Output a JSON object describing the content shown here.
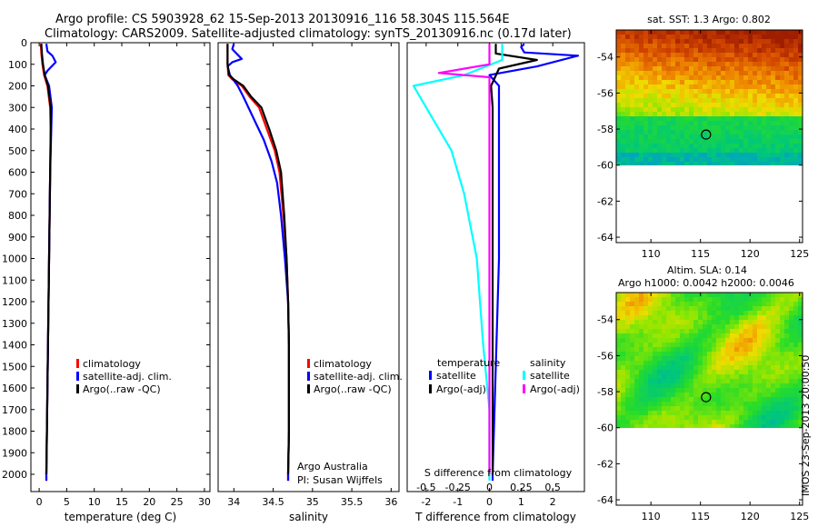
{
  "header": {
    "line1": "Argo profile: CS 5903928_62 15-Sep-2013 20130916_116 58.304S 115.564E",
    "line2": "Climatology: CARS2009. Satellite-adjusted climatology: synTS_20130916.nc (0.17d later)"
  },
  "colors": {
    "climatology": "#ff0000",
    "satellite": "#0000ff",
    "argo": "#000000",
    "sal_satellite": "#00ffff",
    "sal_argo": "#ff00ff"
  },
  "chart_data": [
    {
      "type": "line",
      "name": "temperature-profile",
      "xlabel": "temperature (deg C)",
      "ylabel": "",
      "xlim": [
        -1.5,
        31
      ],
      "ylim": [
        2080,
        0
      ],
      "xticks": [
        0,
        5,
        10,
        15,
        20,
        25,
        30
      ],
      "yticks": [
        0,
        100,
        200,
        300,
        400,
        500,
        600,
        700,
        800,
        900,
        1000,
        1100,
        1200,
        1300,
        1400,
        1500,
        1600,
        1700,
        1800,
        1900,
        2000
      ],
      "legend": [
        "climatology",
        "satellite-adj. clim.",
        "Argo(..raw -QC)"
      ],
      "legend_position": "lower-center",
      "series": [
        {
          "name": "climatology",
          "color": "#ff0000",
          "points": [
            [
              0.3,
              5
            ],
            [
              0.4,
              50
            ],
            [
              0.6,
              100
            ],
            [
              0.9,
              150
            ],
            [
              1.5,
              200
            ],
            [
              2.0,
              300
            ],
            [
              2.1,
              400
            ],
            [
              2.0,
              600
            ],
            [
              1.9,
              800
            ],
            [
              1.8,
              1000
            ],
            [
              1.7,
              1200
            ],
            [
              1.6,
              1400
            ],
            [
              1.5,
              1600
            ],
            [
              1.4,
              1800
            ],
            [
              1.3,
              2000
            ],
            [
              1.3,
              2030
            ]
          ]
        },
        {
          "name": "satellite-adj. clim.",
          "color": "#0000ff",
          "points": [
            [
              1.3,
              5
            ],
            [
              1.5,
              40
            ],
            [
              2.4,
              60
            ],
            [
              3.0,
              90
            ],
            [
              1.5,
              130
            ],
            [
              1.0,
              150
            ],
            [
              1.8,
              200
            ],
            [
              2.3,
              300
            ],
            [
              2.2,
              400
            ],
            [
              2.0,
              600
            ],
            [
              1.9,
              800
            ],
            [
              1.8,
              1000
            ],
            [
              1.7,
              1200
            ],
            [
              1.6,
              1400
            ],
            [
              1.5,
              1600
            ],
            [
              1.4,
              1800
            ],
            [
              1.3,
              2000
            ],
            [
              1.3,
              2030
            ]
          ]
        },
        {
          "name": "Argo(..raw -QC)",
          "color": "#000000",
          "points": [
            [
              0.4,
              5
            ],
            [
              0.5,
              50
            ],
            [
              0.7,
              100
            ],
            [
              1.0,
              150
            ],
            [
              1.6,
              200
            ],
            [
              2.1,
              300
            ],
            [
              2.1,
              400
            ],
            [
              2.0,
              600
            ],
            [
              1.9,
              800
            ],
            [
              1.8,
              1000
            ],
            [
              1.7,
              1200
            ],
            [
              1.6,
              1400
            ],
            [
              1.5,
              1600
            ],
            [
              1.4,
              1800
            ],
            [
              1.3,
              2000
            ]
          ]
        }
      ]
    },
    {
      "type": "line",
      "name": "salinity-profile",
      "xlabel": "salinity",
      "ylabel": "",
      "xlim": [
        33.8,
        36.1
      ],
      "ylim": [
        2080,
        0
      ],
      "xticks": [
        34,
        34.5,
        35,
        35.5,
        36
      ],
      "xticklabels": [
        "34",
        "34.5",
        "35",
        "35.5",
        "36"
      ],
      "legend": [
        "climatology",
        "satellite-adj. clim.",
        "Argo(..raw -QC)"
      ],
      "legend_position": "lower-right",
      "annotation": [
        "Argo Australia",
        "PI: Susan Wijffels"
      ],
      "series": [
        {
          "name": "climatology",
          "color": "#ff0000",
          "points": [
            [
              33.92,
              5
            ],
            [
              33.92,
              100
            ],
            [
              33.93,
              150
            ],
            [
              33.98,
              170
            ],
            [
              34.1,
              200
            ],
            [
              34.2,
              250
            ],
            [
              34.32,
              300
            ],
            [
              34.42,
              400
            ],
            [
              34.52,
              500
            ],
            [
              34.58,
              600
            ],
            [
              34.63,
              800
            ],
            [
              34.67,
              1000
            ],
            [
              34.69,
              1200
            ],
            [
              34.7,
              1400
            ],
            [
              34.7,
              1600
            ],
            [
              34.7,
              1800
            ],
            [
              34.69,
              2000
            ],
            [
              34.69,
              2030
            ]
          ]
        },
        {
          "name": "satellite-adj. clim.",
          "color": "#0000ff",
          "points": [
            [
              34.0,
              5
            ],
            [
              33.98,
              30
            ],
            [
              34.1,
              75
            ],
            [
              33.98,
              90
            ],
            [
              33.92,
              110
            ],
            [
              33.95,
              150
            ],
            [
              34.05,
              200
            ],
            [
              34.12,
              250
            ],
            [
              34.25,
              350
            ],
            [
              34.38,
              450
            ],
            [
              34.48,
              550
            ],
            [
              34.55,
              650
            ],
            [
              34.6,
              800
            ],
            [
              34.65,
              1000
            ],
            [
              34.69,
              1200
            ],
            [
              34.7,
              1400
            ],
            [
              34.7,
              1600
            ],
            [
              34.7,
              1800
            ],
            [
              34.69,
              2000
            ],
            [
              34.69,
              2030
            ]
          ]
        },
        {
          "name": "Argo(..raw -QC)",
          "color": "#000000",
          "points": [
            [
              33.92,
              5
            ],
            [
              33.92,
              100
            ],
            [
              33.94,
              150
            ],
            [
              34.0,
              170
            ],
            [
              34.12,
              200
            ],
            [
              34.22,
              250
            ],
            [
              34.35,
              300
            ],
            [
              34.45,
              400
            ],
            [
              34.54,
              500
            ],
            [
              34.6,
              600
            ],
            [
              34.64,
              800
            ],
            [
              34.67,
              1000
            ],
            [
              34.69,
              1200
            ],
            [
              34.7,
              1400
            ],
            [
              34.7,
              1600
            ],
            [
              34.7,
              1800
            ],
            [
              34.69,
              2000
            ]
          ]
        }
      ]
    },
    {
      "type": "line",
      "name": "difference-profile",
      "xlabel": "T difference from climatology",
      "xlabel_top": "S difference from climatology",
      "ylabel": "",
      "xlim": [
        -2.6,
        3.0
      ],
      "ylim": [
        2080,
        0
      ],
      "xticks": [
        -2,
        -1,
        0,
        1,
        2
      ],
      "xticks_top": [
        -0.5,
        -0.25,
        0,
        0.25,
        0.5
      ],
      "xticklabels_top": [
        "-0.5",
        "-0.25",
        "0",
        "0.25",
        "0.5"
      ],
      "legend_temperature": {
        "heading": "temperature",
        "items": [
          "satellite",
          "Argo(-adj)"
        ]
      },
      "legend_salinity": {
        "heading": "salinity",
        "items": [
          "satellite",
          "Argo(-adj)"
        ]
      },
      "series": [
        {
          "name": "satellite",
          "group": "temperature",
          "color": "#0000ff",
          "points": [
            [
              1.1,
              5
            ],
            [
              1.0,
              20
            ],
            [
              1.1,
              45
            ],
            [
              2.8,
              60
            ],
            [
              1.5,
              110
            ],
            [
              0.0,
              150
            ],
            [
              0.3,
              200
            ],
            [
              0.3,
              300
            ],
            [
              0.3,
              500
            ],
            [
              0.3,
              1000
            ],
            [
              0.2,
              1500
            ],
            [
              0.1,
              2000
            ],
            [
              0.1,
              2030
            ]
          ]
        },
        {
          "name": "Argo(-adj)",
          "group": "temperature",
          "color": "#000000",
          "points": [
            [
              0.2,
              5
            ],
            [
              0.2,
              50
            ],
            [
              1.5,
              80
            ],
            [
              0.3,
              120
            ],
            [
              0.05,
              200
            ],
            [
              0.1,
              300
            ],
            [
              0.1,
              500
            ],
            [
              0.1,
              1000
            ],
            [
              0.1,
              1500
            ],
            [
              0.1,
              2000
            ]
          ]
        },
        {
          "name": "satellite",
          "group": "salinity",
          "color": "#00ffff",
          "points": [
            [
              0.1,
              5
            ],
            [
              0.1,
              80
            ],
            [
              -0.2,
              150
            ],
            [
              -0.6,
              200
            ],
            [
              -0.5,
              300
            ],
            [
              -0.3,
              500
            ],
            [
              -0.2,
              700
            ],
            [
              -0.1,
              1000
            ],
            [
              -0.05,
              1400
            ],
            [
              0.0,
              1700
            ],
            [
              0.0,
              2000
            ],
            [
              0.0,
              2030
            ]
          ]
        },
        {
          "name": "Argo(-adj)",
          "group": "salinity",
          "color": "#ff00ff",
          "points": [
            [
              0.0,
              5
            ],
            [
              0.0,
              100
            ],
            [
              -0.4,
              140
            ],
            [
              0.0,
              160
            ],
            [
              0.0,
              200
            ],
            [
              0.0,
              300
            ],
            [
              0.0,
              1000
            ],
            [
              0.0,
              2000
            ]
          ]
        }
      ]
    },
    {
      "type": "heatmap",
      "name": "sst-map",
      "title": "sat. SST: 1.3 Argo: 0.802",
      "xlim": [
        106.5,
        125.3
      ],
      "ylim": [
        -64.3,
        -52.5
      ],
      "xticks": [
        110,
        115,
        120,
        125
      ],
      "yticks": [
        -54,
        -56,
        -58,
        -60,
        -62,
        -64
      ],
      "data_extent_south": -60,
      "argo_position": [
        115.564,
        -58.304
      ]
    },
    {
      "type": "heatmap",
      "name": "sla-map",
      "title_lines": [
        "Altim. SLA: 0.14",
        "Argo h1000: 0.0042 h2000: 0.0046"
      ],
      "xlim": [
        106.5,
        125.3
      ],
      "ylim": [
        -64.3,
        -52.5
      ],
      "xticks": [
        110,
        115,
        120,
        125
      ],
      "yticks": [
        -54,
        -56,
        -58,
        -60,
        -62,
        -64
      ],
      "data_extent_south": -60,
      "argo_position": [
        115.564,
        -58.304
      ]
    }
  ],
  "footer": {
    "stamp": "IMOS 23-Sep-2013 20:00:50"
  }
}
